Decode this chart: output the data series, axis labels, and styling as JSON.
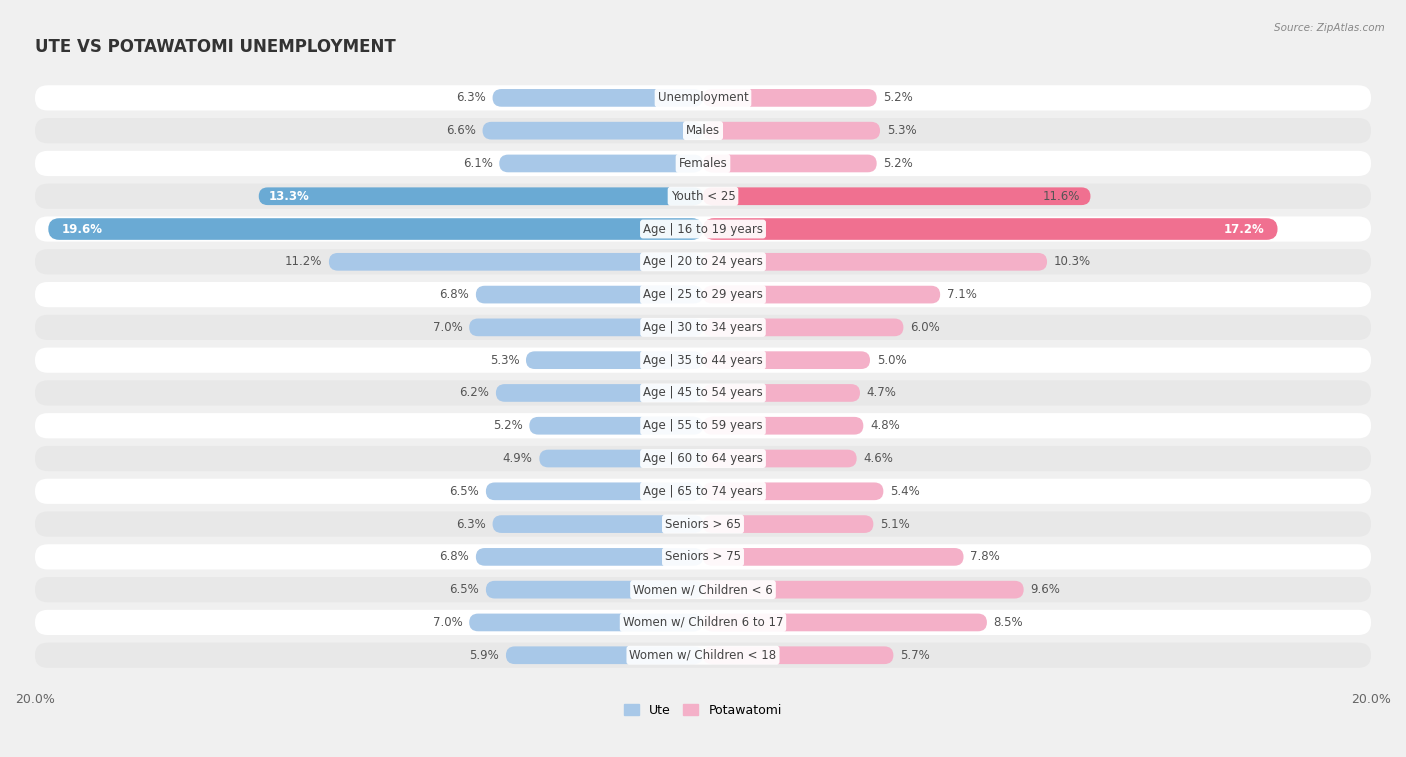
{
  "title": "UTE VS POTAWATOMI UNEMPLOYMENT",
  "source": "Source: ZipAtlas.com",
  "categories": [
    "Unemployment",
    "Males",
    "Females",
    "Youth < 25",
    "Age | 16 to 19 years",
    "Age | 20 to 24 years",
    "Age | 25 to 29 years",
    "Age | 30 to 34 years",
    "Age | 35 to 44 years",
    "Age | 45 to 54 years",
    "Age | 55 to 59 years",
    "Age | 60 to 64 years",
    "Age | 65 to 74 years",
    "Seniors > 65",
    "Seniors > 75",
    "Women w/ Children < 6",
    "Women w/ Children 6 to 17",
    "Women w/ Children < 18"
  ],
  "ute_values": [
    6.3,
    6.6,
    6.1,
    13.3,
    19.6,
    11.2,
    6.8,
    7.0,
    5.3,
    6.2,
    5.2,
    4.9,
    6.5,
    6.3,
    6.8,
    6.5,
    7.0,
    5.9
  ],
  "potawatomi_values": [
    5.2,
    5.3,
    5.2,
    11.6,
    17.2,
    10.3,
    7.1,
    6.0,
    5.0,
    4.7,
    4.8,
    4.6,
    5.4,
    5.1,
    7.8,
    9.6,
    8.5,
    5.7
  ],
  "ute_color_normal": "#a8c8e8",
  "ute_color_highlight": "#6aaad4",
  "potawatomi_color_normal": "#f4b0c8",
  "potawatomi_color_highlight": "#f07090",
  "axis_max": 20.0,
  "background_color": "#f0f0f0",
  "row_bg_light": "#ffffff",
  "row_bg_dark": "#e8e8e8",
  "label_fontsize": 8.5,
  "title_fontsize": 12,
  "legend_ute": "Ute",
  "legend_potawatomi": "Potawatomi",
  "highlight_rows": [
    3,
    4
  ],
  "large_rows": [
    4
  ]
}
